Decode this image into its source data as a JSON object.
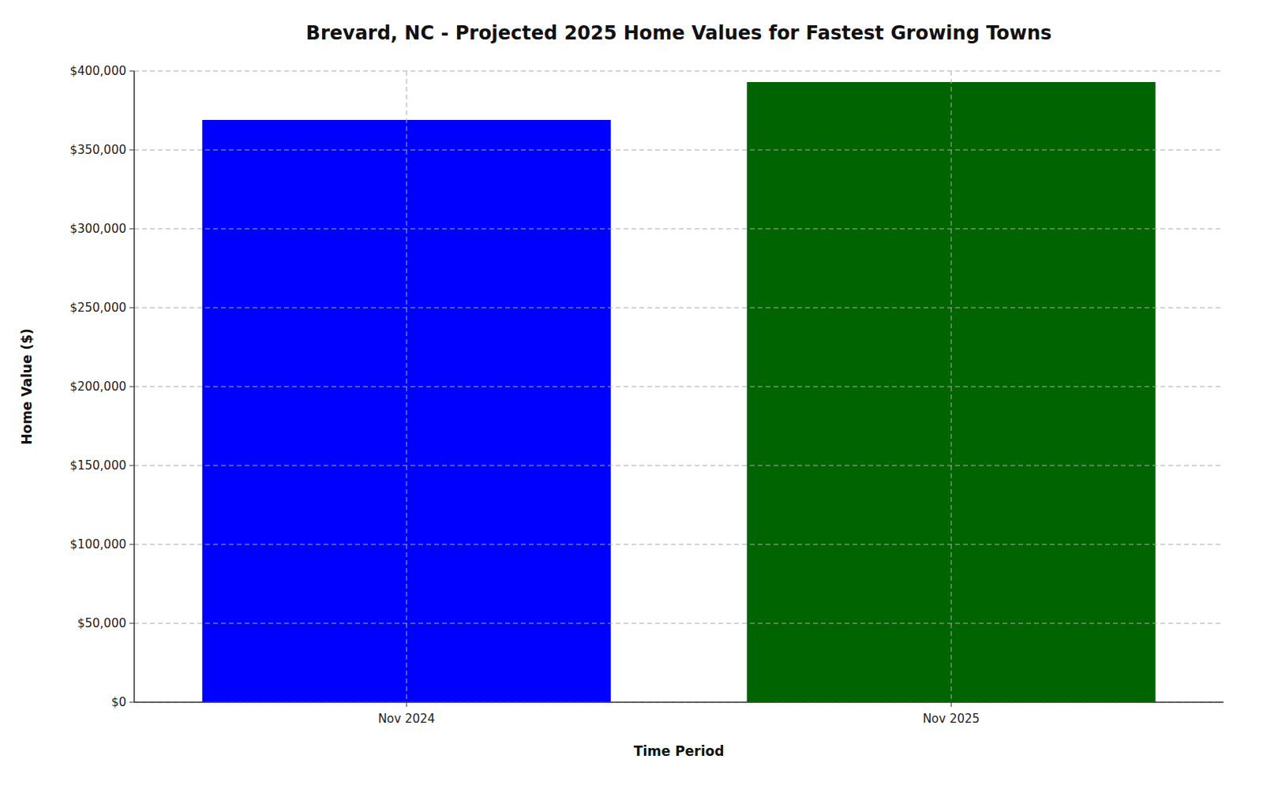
{
  "chart_data": {
    "type": "bar",
    "title": "Brevard, NC - Projected 2025 Home Values for Fastest Growing Towns",
    "xlabel": "Time Period",
    "ylabel": "Home Value ($)",
    "categories": [
      "Nov 2024",
      "Nov 2025"
    ],
    "values": [
      369000,
      393000
    ],
    "colors": [
      "#0000ff",
      "#006400"
    ],
    "ylim": [
      0,
      400000
    ],
    "yticks": [
      {
        "value": 0,
        "label": "$0"
      },
      {
        "value": 50000,
        "label": "$50,000"
      },
      {
        "value": 100000,
        "label": "$100,000"
      },
      {
        "value": 150000,
        "label": "$150,000"
      },
      {
        "value": 200000,
        "label": "$200,000"
      },
      {
        "value": 250000,
        "label": "$250,000"
      },
      {
        "value": 300000,
        "label": "$300,000"
      },
      {
        "value": 350000,
        "label": "$350,000"
      },
      {
        "value": 400000,
        "label": "$400,000"
      }
    ],
    "grid": true
  }
}
